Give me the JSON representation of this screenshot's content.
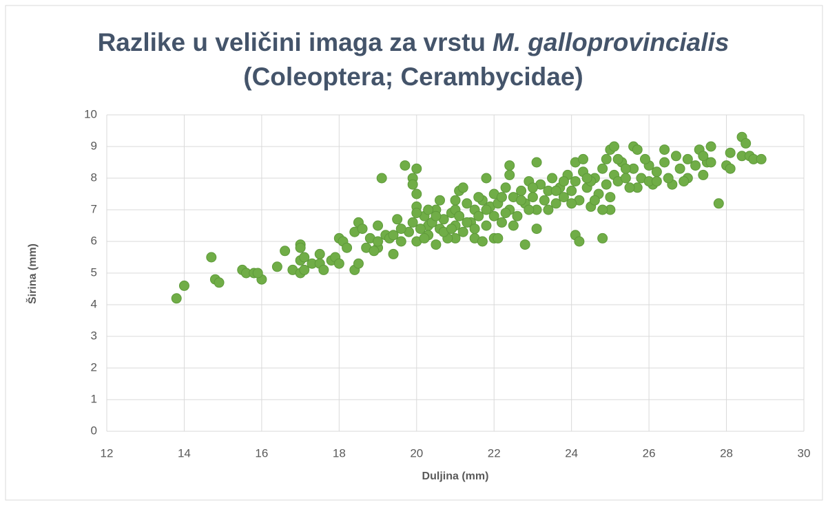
{
  "chart_data": {
    "type": "scatter",
    "title": {
      "text": "Razlike u veličini imaga za vrstu",
      "species": "M. galloprovincialis",
      "line2": "(Coleoptera; Cerambycidae)"
    },
    "x_label": "Duljina (mm)",
    "y_label": "Širina (mm)",
    "color": "#70ad47",
    "grid": true,
    "xlim": [
      12,
      30
    ],
    "xticks": [
      12,
      14,
      16,
      18,
      20,
      22,
      24,
      26,
      28,
      30
    ],
    "ylim": [
      0,
      10
    ],
    "yticks": [
      0,
      1,
      2,
      3,
      4,
      5,
      6,
      7,
      8,
      9,
      10
    ],
    "x": [
      13.8,
      14,
      14.7,
      14.8,
      14.9,
      15.5,
      15.6,
      15.8,
      16,
      15.9,
      16.4,
      16.6,
      16.8,
      17,
      17,
      17,
      17,
      17.1,
      17.1,
      17.3,
      17.5,
      17.5,
      17.6,
      17.8,
      17.9,
      18,
      18,
      18.1,
      18.2,
      18.4,
      18.5,
      18.5,
      18.4,
      18.6,
      18.7,
      18.8,
      19,
      19,
      19.1,
      19.2,
      19.4,
      19.5,
      19.7,
      19.9,
      19.9,
      20,
      20,
      20,
      20,
      20.3,
      20.5,
      20.6,
      21,
      21.1,
      21.2,
      21.5,
      21.7,
      21.8,
      22,
      22.1,
      22.4,
      22.4,
      22.8,
      23.1,
      23.1,
      24.1,
      24.2,
      24.8,
      24.1,
      24.3,
      25,
      25.1,
      25.6,
      25.7,
      26.4,
      27.3,
      27.6,
      27.8,
      28.1,
      28.4,
      28.5,
      28.4,
      28.6,
      28.7,
      28.9,
      28,
      28.1,
      27.4,
      27.5,
      26.6,
      26.1,
      25.7,
      20.1,
      20.2,
      20.3,
      20.4,
      20.5,
      20.6,
      20.7,
      20.8,
      20.9,
      21.0,
      21.0,
      21.1,
      21.2,
      21.3,
      21.4,
      21.5,
      21.6,
      21.7,
      21.8,
      21.9,
      22.0,
      22.0,
      22.1,
      22.2,
      22.3,
      22.4,
      22.5,
      22.6,
      22.7,
      22.8,
      22.9,
      23.0,
      23.1,
      23.2,
      23.3,
      23.4,
      23.5,
      23.6,
      23.7,
      23.8,
      23.9,
      24.0,
      24.1,
      24.2,
      24.3,
      24.4,
      24.5,
      24.6,
      24.7,
      24.8,
      24.9,
      25.0,
      25.1,
      25.2,
      25.3,
      25.4,
      25.5,
      25.6,
      25.8,
      26.0,
      26.0,
      26.2,
      26.4,
      26.5,
      26.7,
      26.8,
      27.0,
      27.0,
      27.2,
      27.4,
      27.6,
      26.9,
      19.6,
      19.8,
      19.9,
      20.0,
      19.3,
      19.0,
      18.9,
      19.4,
      19.6,
      20.2,
      20.7,
      21.3,
      21.8,
      22.3,
      22.5,
      22.9,
      23.4,
      24.0,
      24.6,
      25.0,
      24.8,
      24.5,
      23.8,
      23.0,
      22.2,
      21.6,
      21.0,
      20.5,
      20.3,
      20.9,
      21.5,
      22.7,
      23.6,
      24.4,
      25.4,
      26.2,
      25.9,
      25.2,
      24.9
    ],
    "values": [
      4.2,
      4.6,
      5.5,
      4.8,
      4.7,
      5.1,
      5.0,
      5.0,
      4.8,
      5.0,
      5.2,
      5.7,
      5.1,
      5.9,
      5.8,
      5.4,
      5.0,
      5.1,
      5.5,
      5.3,
      5.6,
      5.3,
      5.1,
      5.4,
      5.5,
      5.3,
      6.1,
      6.0,
      5.8,
      5.1,
      5.3,
      6.6,
      6.3,
      6.4,
      5.8,
      6.1,
      6.5,
      5.8,
      8.0,
      6.2,
      5.6,
      6.7,
      8.4,
      8.0,
      7.8,
      8.3,
      7.5,
      7.1,
      6.0,
      6.5,
      5.9,
      7.3,
      6.1,
      7.6,
      7.7,
      6.1,
      6.0,
      8.0,
      6.1,
      6.1,
      8.4,
      8.1,
      5.9,
      8.5,
      6.4,
      6.2,
      6.0,
      6.1,
      8.5,
      8.6,
      8.9,
      9.0,
      9.0,
      8.9,
      8.9,
      8.9,
      9.0,
      7.2,
      8.8,
      9.3,
      9.1,
      8.7,
      8.7,
      8.6,
      8.6,
      8.4,
      8.3,
      8.1,
      8.5,
      7.8,
      7.8,
      7.7,
      6.4,
      6.8,
      6.2,
      6.6,
      7.0,
      6.4,
      6.7,
      6.1,
      6.9,
      6.5,
      7.0,
      6.8,
      6.3,
      7.2,
      6.6,
      7.0,
      6.8,
      7.3,
      6.5,
      7.1,
      6.8,
      7.5,
      7.2,
      6.6,
      7.7,
      7.0,
      7.4,
      6.8,
      7.6,
      7.2,
      7.9,
      7.4,
      7.0,
      7.8,
      7.3,
      7.6,
      8.0,
      7.2,
      7.7,
      7.4,
      8.1,
      7.6,
      7.9,
      7.3,
      8.2,
      7.7,
      7.1,
      8.0,
      7.5,
      8.3,
      7.8,
      7.4,
      8.1,
      7.9,
      8.5,
      8.0,
      7.7,
      8.3,
      8.0,
      8.4,
      7.9,
      8.2,
      8.5,
      8.0,
      8.7,
      8.3,
      8.6,
      8.0,
      8.4,
      8.7,
      8.5,
      7.9,
      6.0,
      6.3,
      6.6,
      6.9,
      6.1,
      6.0,
      5.7,
      6.2,
      6.4,
      6.1,
      6.3,
      6.6,
      7.0,
      6.9,
      6.5,
      7.0,
      7.0,
      7.2,
      7.3,
      7.0,
      7.0,
      7.9,
      7.9,
      7.7,
      7.4,
      7.4,
      7.3,
      6.8,
      7.0,
      6.4,
      6.4,
      7.3,
      7.6,
      8.0,
      8.3,
      7.9,
      8.6,
      8.6,
      8.6
    ]
  }
}
